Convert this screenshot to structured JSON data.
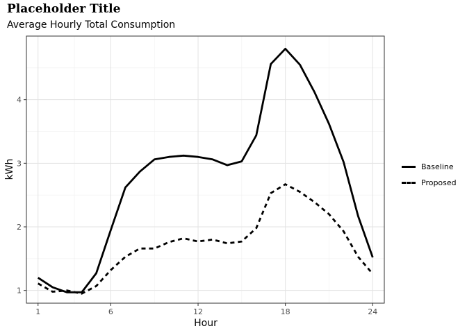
{
  "chart_data": {
    "type": "line",
    "title": "Placeholder Title",
    "subtitle": "Average Hourly Total Consumption",
    "xlabel": "Hour",
    "ylabel": "kWh",
    "xlim": [
      0.2,
      24.8
    ],
    "ylim": [
      0.8,
      5.0
    ],
    "x_ticks": [
      1,
      6,
      12,
      18,
      24
    ],
    "y_ticks": [
      1,
      2,
      3,
      4
    ],
    "grid": true,
    "legend_position": "right",
    "x": [
      1,
      2,
      3,
      4,
      5,
      6,
      7,
      8,
      9,
      10,
      11,
      12,
      13,
      14,
      15,
      16,
      17,
      18,
      19,
      20,
      21,
      22,
      23,
      24
    ],
    "series": [
      {
        "name": "Baseline",
        "style": "solid",
        "color": "#000000",
        "values": [
          1.2,
          1.05,
          0.97,
          0.97,
          1.27,
          1.95,
          2.62,
          2.87,
          3.06,
          3.1,
          3.12,
          3.1,
          3.06,
          2.97,
          3.03,
          3.44,
          4.56,
          4.8,
          4.55,
          4.12,
          3.62,
          3.02,
          2.17,
          1.52
        ]
      },
      {
        "name": "Proposed",
        "style": "dashed",
        "color": "#000000",
        "values": [
          1.11,
          0.98,
          1.0,
          0.95,
          1.07,
          1.32,
          1.53,
          1.66,
          1.66,
          1.76,
          1.82,
          1.77,
          1.8,
          1.74,
          1.77,
          1.98,
          2.53,
          2.67,
          2.55,
          2.39,
          2.2,
          1.93,
          1.53,
          1.26
        ]
      }
    ]
  }
}
